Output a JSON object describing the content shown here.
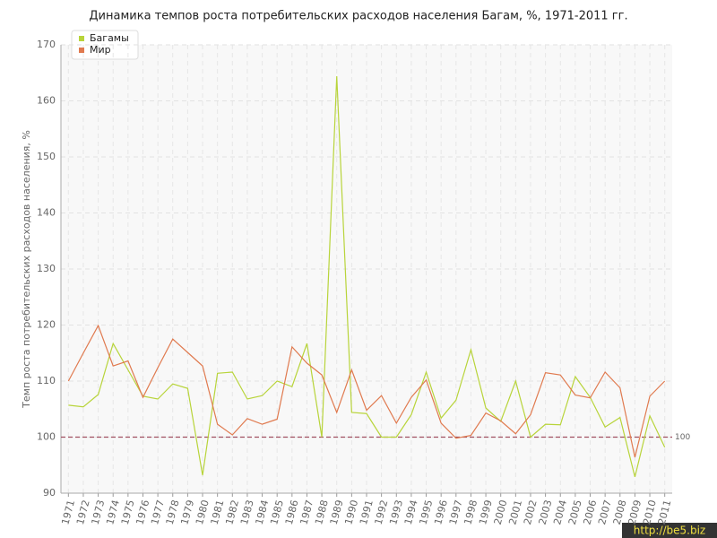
{
  "chart_data": {
    "type": "line",
    "title": "Динамика темпов роста потребительских расходов населения Багам, %, 1971-2011 гг.",
    "y_label": "Темп роста потребительских расходов населения, %",
    "categories": [
      "1971",
      "1972",
      "1973",
      "1974",
      "1975",
      "1976",
      "1977",
      "1978",
      "1979",
      "1980",
      "1981",
      "1982",
      "1983",
      "1984",
      "1985",
      "1986",
      "1987",
      "1988",
      "1989",
      "1990",
      "1991",
      "1992",
      "1993",
      "1994",
      "1995",
      "1996",
      "1997",
      "1998",
      "1999",
      "2000",
      "2001",
      "2002",
      "2003",
      "2004",
      "2005",
      "2006",
      "2007",
      "2008",
      "2009",
      "2010",
      "2011"
    ],
    "series": [
      {
        "name": "Багамы",
        "color": "#b8d43a",
        "values": [
          105.7,
          105.4,
          107.6,
          116.7,
          112,
          107.3,
          106.8,
          109.5,
          108.7,
          93.2,
          111.4,
          111.6,
          106.8,
          107.4,
          110,
          109,
          116.7,
          100,
          164.4,
          104.4,
          104.2,
          100,
          100,
          104,
          111.6,
          103.4,
          106.6,
          115.6,
          105.2,
          102.8,
          110,
          100,
          102.3,
          102.2,
          110.8,
          107.1,
          101.8,
          103.5,
          92.9,
          103.8,
          98.2
        ]
      },
      {
        "name": "Мир",
        "color": "#e07a4f",
        "values": [
          110,
          115,
          119.9,
          112.7,
          113.6,
          107.1,
          112.4,
          117.5,
          115.1,
          112.7,
          102.3,
          100.4,
          103.3,
          102.3,
          103.2,
          116.1,
          113.2,
          111.1,
          104.4,
          112,
          104.8,
          107.4,
          102.5,
          107.1,
          110.2,
          102.5,
          99.8,
          100.3,
          104.3,
          102.9,
          100.6,
          104,
          111.5,
          111.1,
          107.5,
          107,
          111.6,
          108.8,
          96.4,
          107.3,
          110
        ]
      }
    ],
    "ylim": [
      90,
      170
    ],
    "yticks": [
      90,
      100,
      110,
      120,
      130,
      140,
      150,
      160,
      170
    ],
    "grid": true,
    "reference_line": 100,
    "reference_color": "#a05060",
    "legend_position": "top-left",
    "watermark": "http://be5.biz"
  }
}
